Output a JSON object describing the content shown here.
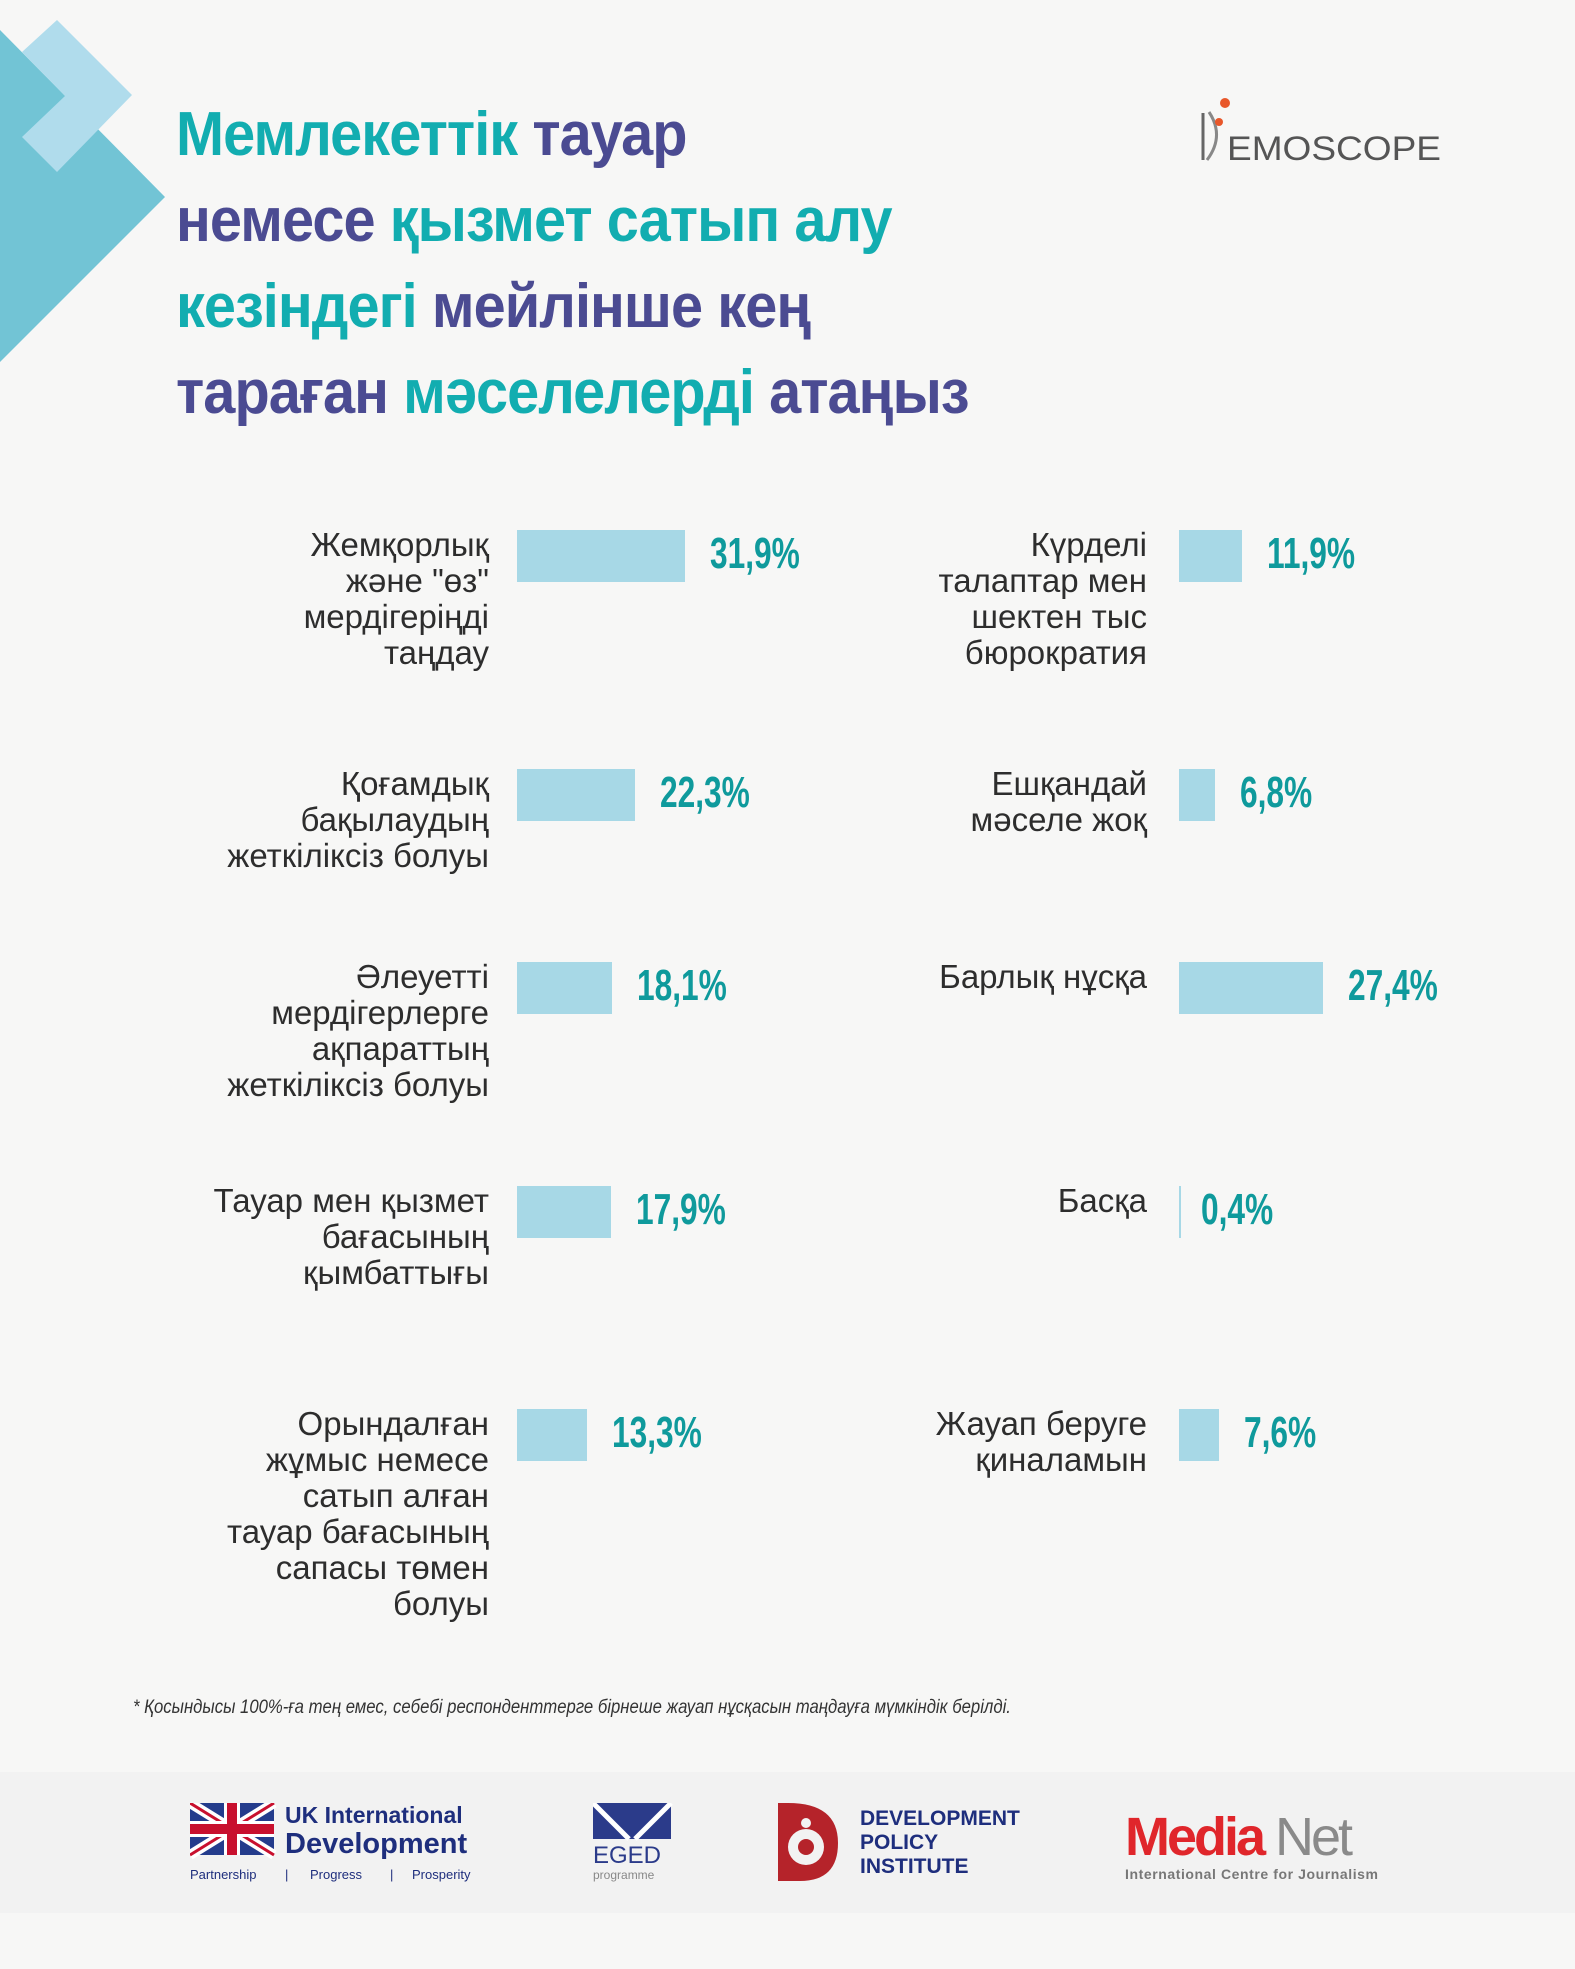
{
  "title": {
    "segments": [
      {
        "text": "Мемлекеттік ",
        "color": "teal"
      },
      {
        "text": "тауар",
        "color": "purple"
      },
      {
        "text": "\n",
        "color": "teal"
      },
      {
        "text": "немесе ",
        "color": "purple"
      },
      {
        "text": "қызмет сатып алу",
        "color": "teal"
      },
      {
        "text": "\n",
        "color": "teal"
      },
      {
        "text": "кезіндегі ",
        "color": "teal"
      },
      {
        "text": "мейлінше кең",
        "color": "purple"
      },
      {
        "text": "\n",
        "color": "teal"
      },
      {
        "text": "тараған ",
        "color": "purple"
      },
      {
        "text": "мәселелерді ",
        "color": "teal"
      },
      {
        "text": "атаңыз",
        "color": "purple"
      }
    ]
  },
  "brand_logo": "DEMOSCOPE",
  "colors": {
    "teal": "#12adb0",
    "purple": "#4b4b92",
    "bar": "#a7d8e6",
    "value": "#0f9a9c"
  },
  "chart_data": {
    "type": "bar",
    "orientation": "horizontal",
    "categories": [
      "Жемқорлық\nжәне \"өз\"\nмердігеріңді\nтаңдау",
      "Қоғамдық\nбақылаудың\nжеткіліксіз болуы",
      "Әлеуетті\nмердігерлерге\nақпараттың\nжеткіліксіз болуы",
      "Тауар мен қызмет\nбағасының\nқымбаттығы",
      "Орындалған\nжұмыс немесе\nсатып алған\nтауар бағасының\nсапасы төмен\nболуы",
      "Күрделі\nталаптар мен\nшектен тыс\nбюрократия",
      "Ешқандай\nмәселе жоқ",
      "Барлық нұсқа",
      "Басқа",
      "Жауап беруге\nқиналамын"
    ],
    "values": [
      31.9,
      22.3,
      18.1,
      17.9,
      13.3,
      11.9,
      6.8,
      27.4,
      0.4,
      7.6
    ],
    "value_labels": [
      "31,9%",
      "22,3%",
      "18,1%",
      "17,9%",
      "13,3%",
      "11,9%",
      "6,8%",
      "27,4%",
      "0,4%",
      "7,6%"
    ],
    "unit": "%"
  },
  "footnote": "* Қосындысы 100%-ға тең емес, себебі респонденттерге бірнеше жауап нұсқасын таңдауға мүмкіндік берілді.",
  "footer": {
    "uk": {
      "line1": "UK International",
      "line2": "Development",
      "tag1": "Partnership",
      "tag2": "Progress",
      "tag3": "Prosperity"
    },
    "eged": {
      "name": "EGED",
      "sub": "programme"
    },
    "dpi": {
      "line1": "DEVELOPMENT",
      "line2": "POLICY",
      "line3": "INSTITUTE"
    },
    "medianet": {
      "media": "Media",
      "net": "Net",
      "sub": "International Centre for Journalism"
    }
  }
}
